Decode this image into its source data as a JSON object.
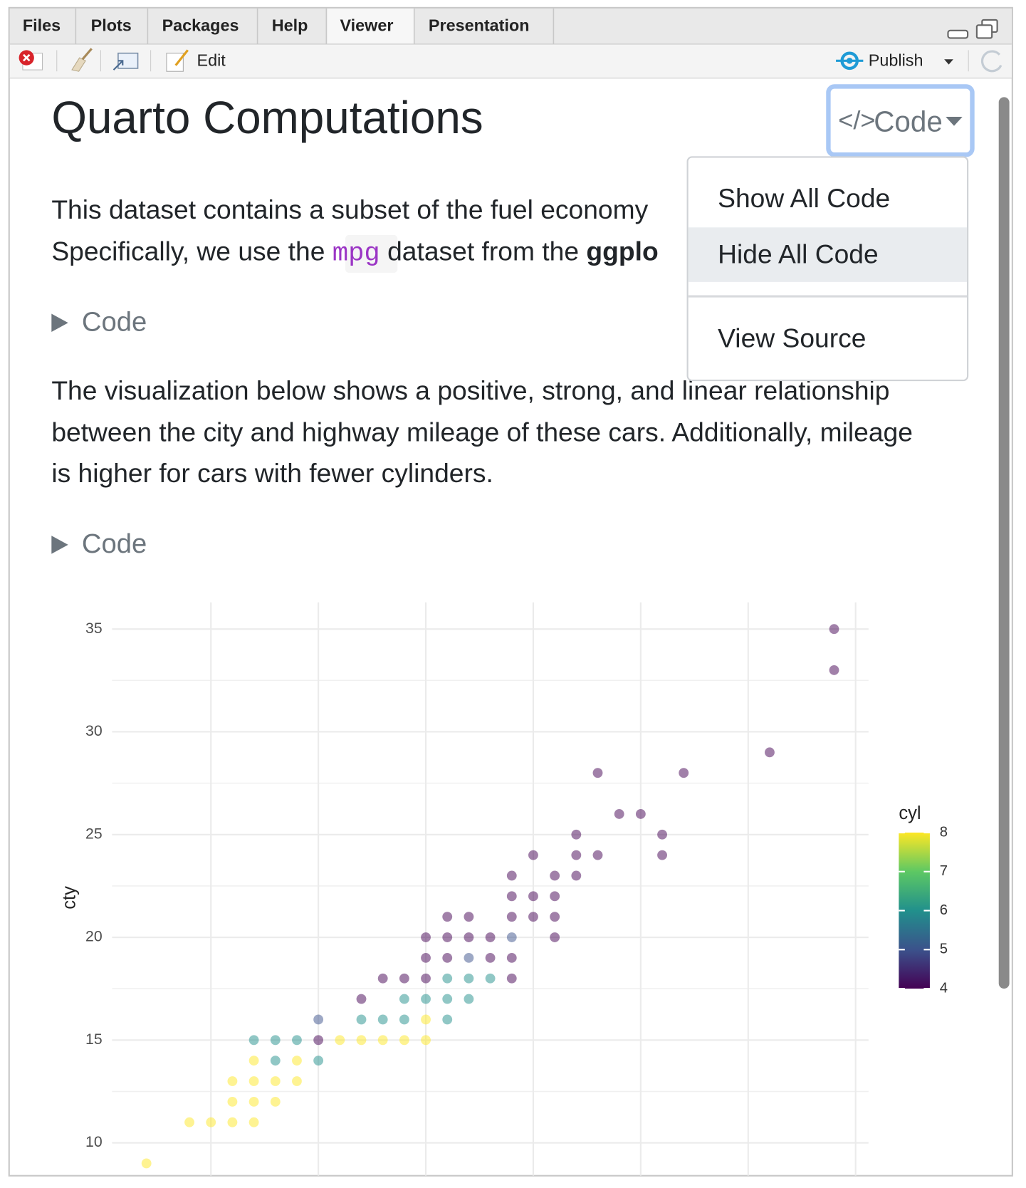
{
  "tabs": [
    "Files",
    "Plots",
    "Packages",
    "Help",
    "Viewer",
    "Presentation"
  ],
  "toolbar": {
    "edit": "Edit",
    "publish": "Publish"
  },
  "document": {
    "title": "Quarto Computations",
    "code_button": "Code",
    "menu": [
      "Show All Code",
      "Hide All Code",
      "View Source"
    ],
    "paragraph1": {
      "line1": "This dataset contains a subset of the fuel economy",
      "line2_start": "Specifically, we use the ",
      "code": "mpg",
      "line2_mid": " dataset from the ",
      "bold": "ggplo"
    },
    "code_toggles": [
      "Code",
      "Code"
    ],
    "paragraph2": [
      "The visualization below shows a positive, strong, and linear relationship",
      "between the city and highway mileage of these cars. Additionally, mileage",
      "is higher for cars with fewer cylinders."
    ]
  },
  "chart_data": {
    "type": "scatter",
    "y_label": "cty",
    "x": [
      12,
      14,
      15,
      16,
      17,
      16,
      17,
      18,
      16,
      17,
      18,
      19,
      17,
      18,
      19,
      20,
      17,
      18,
      19,
      20,
      21,
      22,
      23,
      24,
      25,
      20,
      22,
      23,
      24,
      25,
      26,
      22,
      24,
      25,
      26,
      27,
      23,
      24,
      25,
      26,
      27,
      28,
      29,
      25,
      26,
      27,
      28,
      29,
      25,
      26,
      27,
      28,
      29,
      31,
      26,
      27,
      29,
      30,
      31,
      29,
      30,
      31,
      29,
      31,
      32,
      30,
      32,
      33,
      36,
      32,
      36,
      34,
      35,
      33,
      37,
      41,
      44,
      44
    ],
    "y": [
      9,
      11,
      11,
      11,
      11,
      12,
      12,
      12,
      13,
      13,
      13,
      13,
      14,
      14,
      14,
      14,
      15,
      15,
      15,
      15,
      15,
      15,
      15,
      15,
      15,
      16,
      16,
      16,
      16,
      16,
      16,
      17,
      17,
      17,
      17,
      17,
      18,
      18,
      18,
      18,
      18,
      18,
      18,
      19,
      19,
      19,
      19,
      19,
      20,
      20,
      20,
      20,
      20,
      20,
      21,
      21,
      21,
      21,
      21,
      22,
      22,
      22,
      23,
      23,
      23,
      24,
      24,
      24,
      24,
      25,
      25,
      26,
      26,
      28,
      28,
      29,
      33,
      35
    ],
    "cyl": [
      8,
      8,
      8,
      8,
      8,
      8,
      8,
      8,
      8,
      8,
      8,
      8,
      8,
      6,
      8,
      6,
      6,
      6,
      6,
      4,
      8,
      8,
      8,
      8,
      8,
      5,
      6,
      6,
      6,
      8,
      6,
      4,
      6,
      6,
      6,
      6,
      4,
      4,
      4,
      6,
      6,
      6,
      4,
      4,
      4,
      5,
      4,
      4,
      4,
      4,
      4,
      4,
      5,
      4,
      4,
      4,
      4,
      4,
      4,
      4,
      4,
      4,
      4,
      4,
      4,
      4,
      4,
      4,
      4,
      4,
      4,
      4,
      4,
      4,
      4,
      4,
      4,
      4
    ],
    "xlim": [
      10.4,
      45.6
    ],
    "ylim": [
      8.4,
      36.3
    ],
    "yticks": [
      10,
      15,
      20,
      25,
      30,
      35
    ],
    "xgrid": [
      15,
      20,
      25,
      30,
      35,
      40,
      45
    ],
    "alpha": 0.5,
    "colorbar": {
      "title": "cyl",
      "lim": [
        4,
        8
      ],
      "ticks": [
        4,
        5,
        6,
        7,
        8
      ],
      "colors": [
        "#440154",
        "#3b528b",
        "#21908c",
        "#5dc863",
        "#fde725"
      ]
    }
  }
}
